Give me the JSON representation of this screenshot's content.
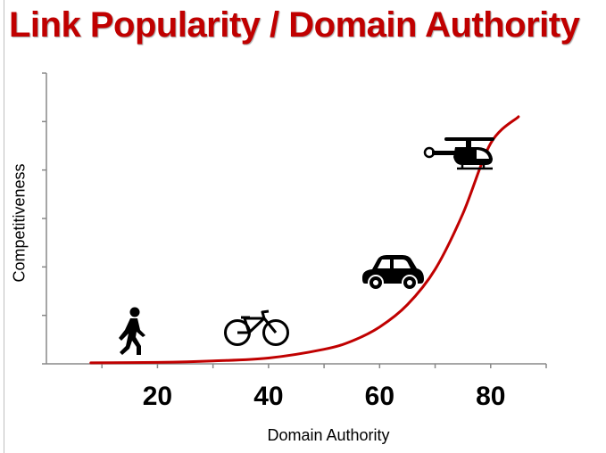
{
  "chart_data": {
    "type": "line",
    "title": "Link Popularity / Domain Authority",
    "xlabel": "Domain Authority",
    "ylabel": "Competitiveness",
    "x_ticks": [
      20,
      40,
      60,
      80
    ],
    "xlim": [
      0,
      90
    ],
    "ylim": [
      0,
      6
    ],
    "grid": false,
    "legend": "none",
    "series": [
      {
        "color": "#c00000",
        "x": [
          8,
          20,
          30,
          40,
          50,
          55,
          60,
          65,
          70,
          75,
          80,
          85
        ],
        "y": [
          0.02,
          0.03,
          0.06,
          0.12,
          0.3,
          0.47,
          0.76,
          1.22,
          1.95,
          3.1,
          4.55,
          5.1
        ]
      }
    ],
    "annotations": [
      {
        "icon": "walking-person-icon",
        "x": 17,
        "y": 0.75
      },
      {
        "icon": "bicycle-icon",
        "x": 40,
        "y": 0.75
      },
      {
        "icon": "car-icon",
        "x": 61,
        "y": 2.0
      },
      {
        "icon": "helicopter-icon",
        "x": 77,
        "y": 4.5
      }
    ]
  }
}
